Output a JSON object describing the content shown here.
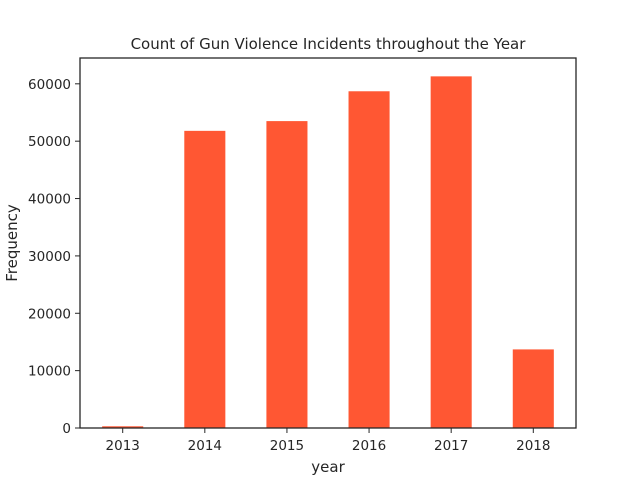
{
  "chart_data": {
    "type": "bar",
    "title": "Count of Gun Violence Incidents throughout the Year",
    "xlabel": "year",
    "ylabel": "Frequency",
    "categories": [
      "2013",
      "2014",
      "2015",
      "2016",
      "2017",
      "2018"
    ],
    "values": [
      300,
      51800,
      53500,
      58700,
      61300,
      13700
    ],
    "ylim": [
      0,
      64500
    ],
    "yticks": [
      0,
      10000,
      20000,
      30000,
      40000,
      50000,
      60000
    ],
    "grid": false,
    "legend": "none",
    "bar_color": "#ff5733"
  }
}
